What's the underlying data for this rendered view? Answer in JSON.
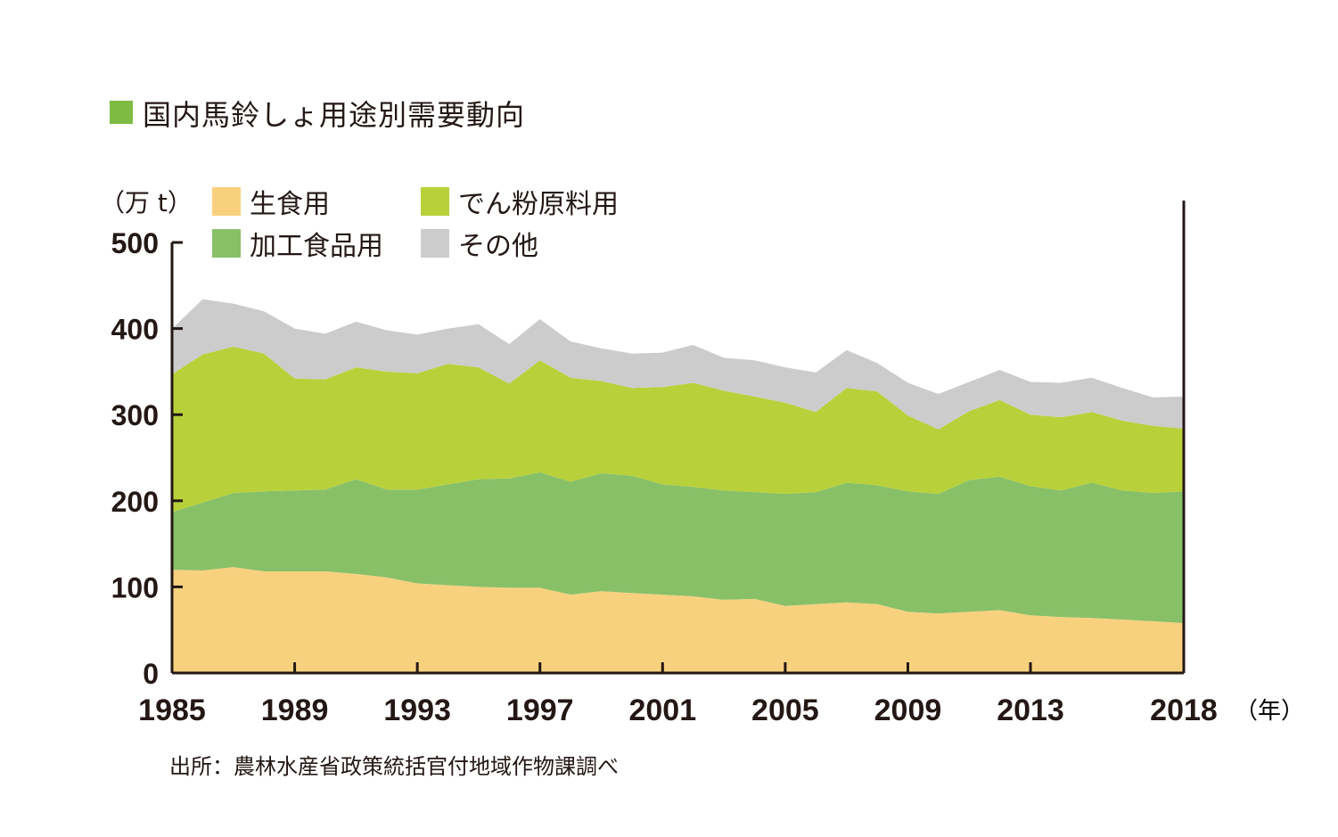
{
  "title": "国内馬鈴しょ用途別需要動向",
  "source": "出所：農林水産省政策統括官付地域作物課調べ",
  "colors": {
    "title_marker": "#7dbb42",
    "axis": "#231815"
  },
  "chart_data": {
    "type": "area",
    "stacked": true,
    "title": "国内馬鈴しょ用途別需要動向",
    "ylabel": "（万 t）",
    "xlabel": "（年）",
    "ylim": [
      0,
      500
    ],
    "xlim": [
      1985,
      2018
    ],
    "yticks": [
      0,
      100,
      200,
      300,
      400,
      500
    ],
    "xticks": [
      1985,
      1989,
      1993,
      1997,
      2001,
      2005,
      2009,
      2013,
      2018
    ],
    "x": [
      1985,
      1986,
      1987,
      1988,
      1989,
      1990,
      1991,
      1992,
      1993,
      1994,
      1995,
      1996,
      1997,
      1998,
      1999,
      2000,
      2001,
      2002,
      2003,
      2004,
      2005,
      2006,
      2007,
      2008,
      2009,
      2010,
      2011,
      2012,
      2013,
      2014,
      2015,
      2016,
      2017,
      2018
    ],
    "series": [
      {
        "name": "生食用",
        "color": "#f8d17f",
        "values": [
          120,
          119,
          123,
          118,
          118,
          118,
          115,
          111,
          104,
          102,
          100,
          99,
          99,
          91,
          95,
          93,
          91,
          89,
          85,
          86,
          78,
          80,
          82,
          80,
          71,
          69,
          71,
          73,
          67,
          65,
          64,
          62,
          60,
          58
        ]
      },
      {
        "name": "加工食品用",
        "color": "#88c068",
        "values": [
          67,
          79,
          86,
          93,
          94,
          95,
          110,
          102,
          109,
          117,
          125,
          127,
          134,
          131,
          137,
          136,
          128,
          127,
          127,
          124,
          130,
          130,
          139,
          138,
          140,
          139,
          153,
          155,
          150,
          147,
          157,
          150,
          149,
          153
        ]
      },
      {
        "name": "でん粉原料用",
        "color": "#b8d13a",
        "values": [
          160,
          172,
          170,
          160,
          130,
          128,
          130,
          137,
          135,
          140,
          130,
          110,
          130,
          121,
          107,
          102,
          113,
          121,
          116,
          111,
          106,
          93,
          110,
          109,
          88,
          75,
          80,
          89,
          83,
          85,
          82,
          81,
          78,
          73
        ]
      },
      {
        "name": "その他",
        "color": "#cccccc",
        "values": [
          53,
          64,
          50,
          49,
          58,
          53,
          53,
          48,
          45,
          41,
          50,
          46,
          48,
          42,
          38,
          40,
          40,
          44,
          38,
          42,
          41,
          46,
          44,
          33,
          38,
          41,
          34,
          35,
          38,
          40,
          40,
          38,
          33,
          37
        ]
      }
    ]
  }
}
